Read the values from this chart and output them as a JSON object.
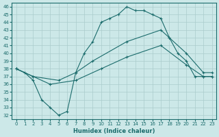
{
  "xlabel": "Humidex (Indice chaleur)",
  "xlim": [
    -0.5,
    23.5
  ],
  "ylim": [
    31.5,
    46.5
  ],
  "yticks": [
    32,
    33,
    34,
    35,
    36,
    37,
    38,
    39,
    40,
    41,
    42,
    43,
    44,
    45,
    46
  ],
  "xticks": [
    0,
    1,
    2,
    3,
    4,
    5,
    6,
    7,
    8,
    9,
    10,
    11,
    12,
    13,
    14,
    15,
    16,
    17,
    18,
    19,
    20,
    21,
    22,
    23
  ],
  "bg_color": "#cce8e8",
  "grid_color": "#aacccc",
  "line_color": "#1a6b6b",
  "line1_x": [
    0,
    1,
    2,
    3,
    4,
    5,
    6,
    7,
    8,
    9,
    10,
    11,
    12,
    13,
    14,
    15,
    16,
    17,
    18,
    19,
    20,
    21,
    22,
    23
  ],
  "line1_y": [
    38.0,
    37.5,
    36.5,
    34.0,
    33.0,
    32.0,
    32.5,
    37.5,
    40.0,
    41.5,
    44.0,
    44.5,
    45.0,
    46.0,
    45.5,
    45.5,
    45.0,
    44.5,
    42.0,
    40.0,
    39.0,
    37.0,
    37.0,
    37.0
  ],
  "line2_x": [
    0,
    2,
    5,
    7,
    9,
    13,
    17,
    18,
    20,
    22,
    23
  ],
  "line2_y": [
    38.0,
    37.0,
    36.5,
    37.5,
    39.0,
    41.5,
    43.0,
    42.0,
    40.0,
    37.5,
    37.5
  ],
  "line3_x": [
    0,
    2,
    4,
    7,
    10,
    13,
    17,
    20,
    22,
    23
  ],
  "line3_y": [
    38.0,
    37.0,
    36.0,
    36.5,
    38.0,
    39.5,
    41.0,
    38.5,
    37.0,
    37.0
  ]
}
